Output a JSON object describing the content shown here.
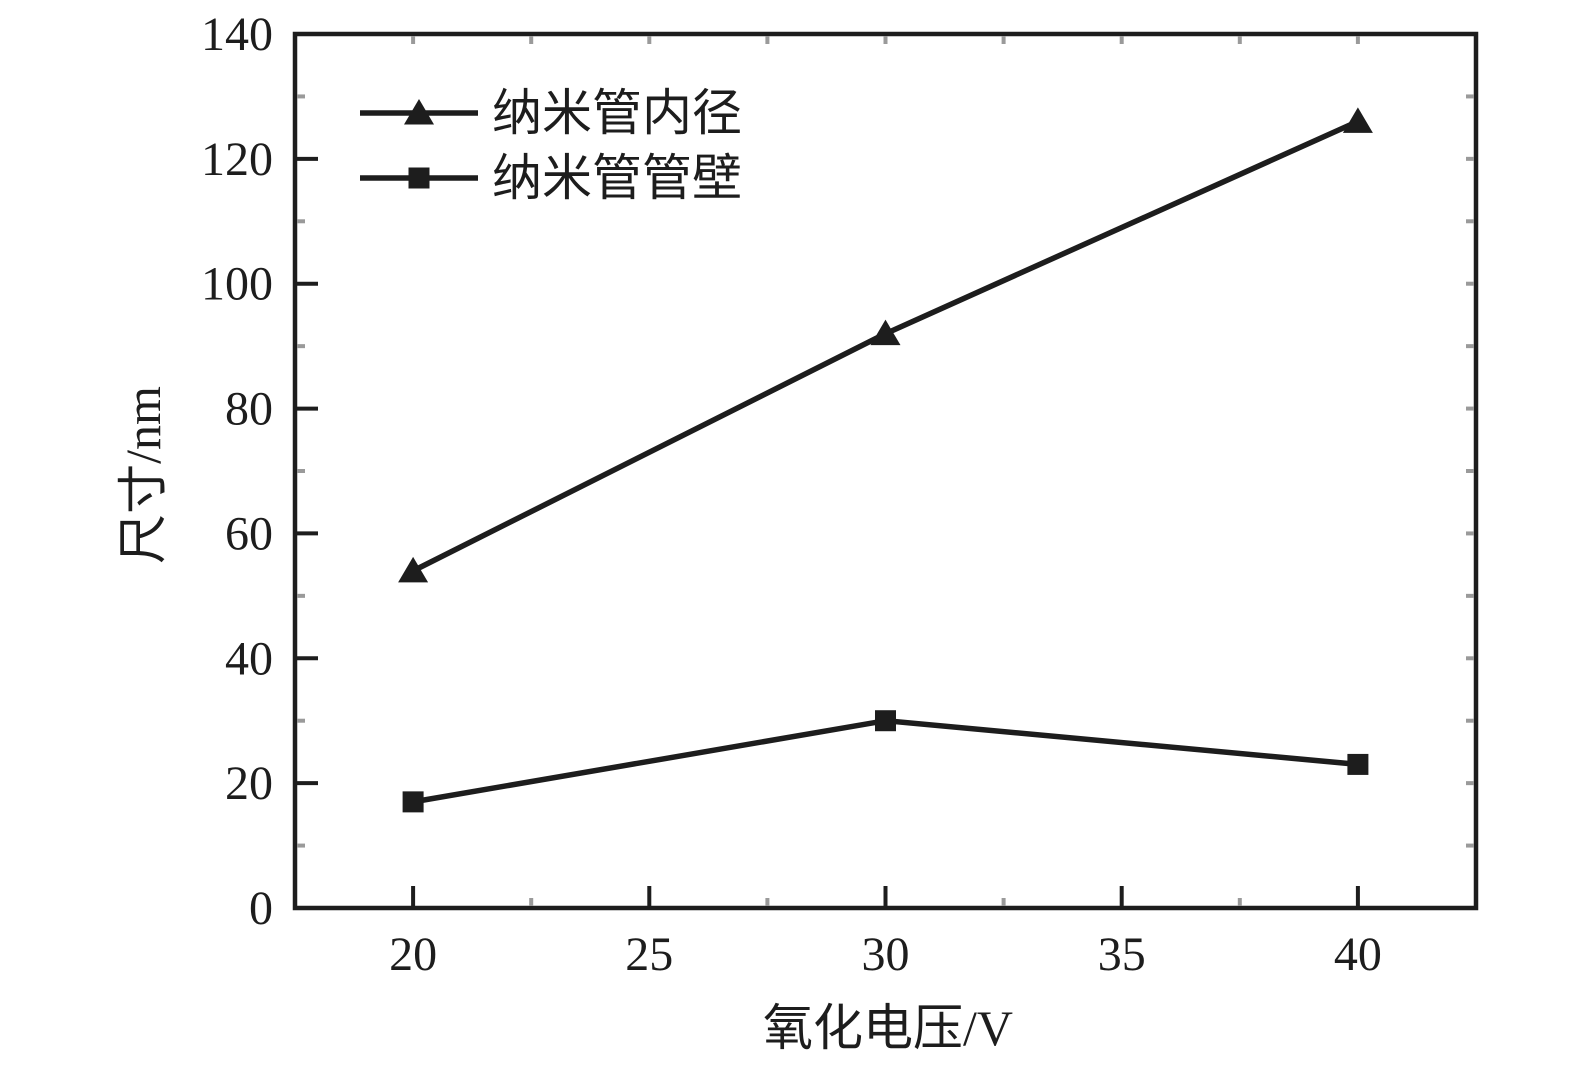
{
  "figure": {
    "background": "#ffffff",
    "ink_color": "#1d1d1d",
    "minor_tick_color": "#9a9a9a"
  },
  "chart_data": {
    "type": "line",
    "title": "",
    "xlabel": "氧化电压/V",
    "ylabel": "尺寸/nm",
    "x": [
      20,
      30,
      40
    ],
    "series": [
      {
        "id": "inner-diameter",
        "name": "纳米管内径",
        "marker": "triangle",
        "values": [
          54,
          92,
          126
        ]
      },
      {
        "id": "tube-wall",
        "name": "纳米管管壁",
        "marker": "square",
        "values": [
          17,
          30,
          23
        ]
      }
    ],
    "xlim": [
      17.5,
      42.5
    ],
    "ylim": [
      0,
      140
    ],
    "xticks": [
      20,
      25,
      30,
      35,
      40
    ],
    "yticks": [
      0,
      20,
      40,
      60,
      80,
      100,
      120,
      140
    ],
    "xminorticks": [
      22.5,
      27.5,
      32.5,
      37.5
    ],
    "yminorticks": [
      10,
      30,
      50,
      70,
      90,
      110,
      130
    ],
    "grid": false,
    "legend_position": "upper-left-inside",
    "line_color": "#1d1d1d"
  }
}
